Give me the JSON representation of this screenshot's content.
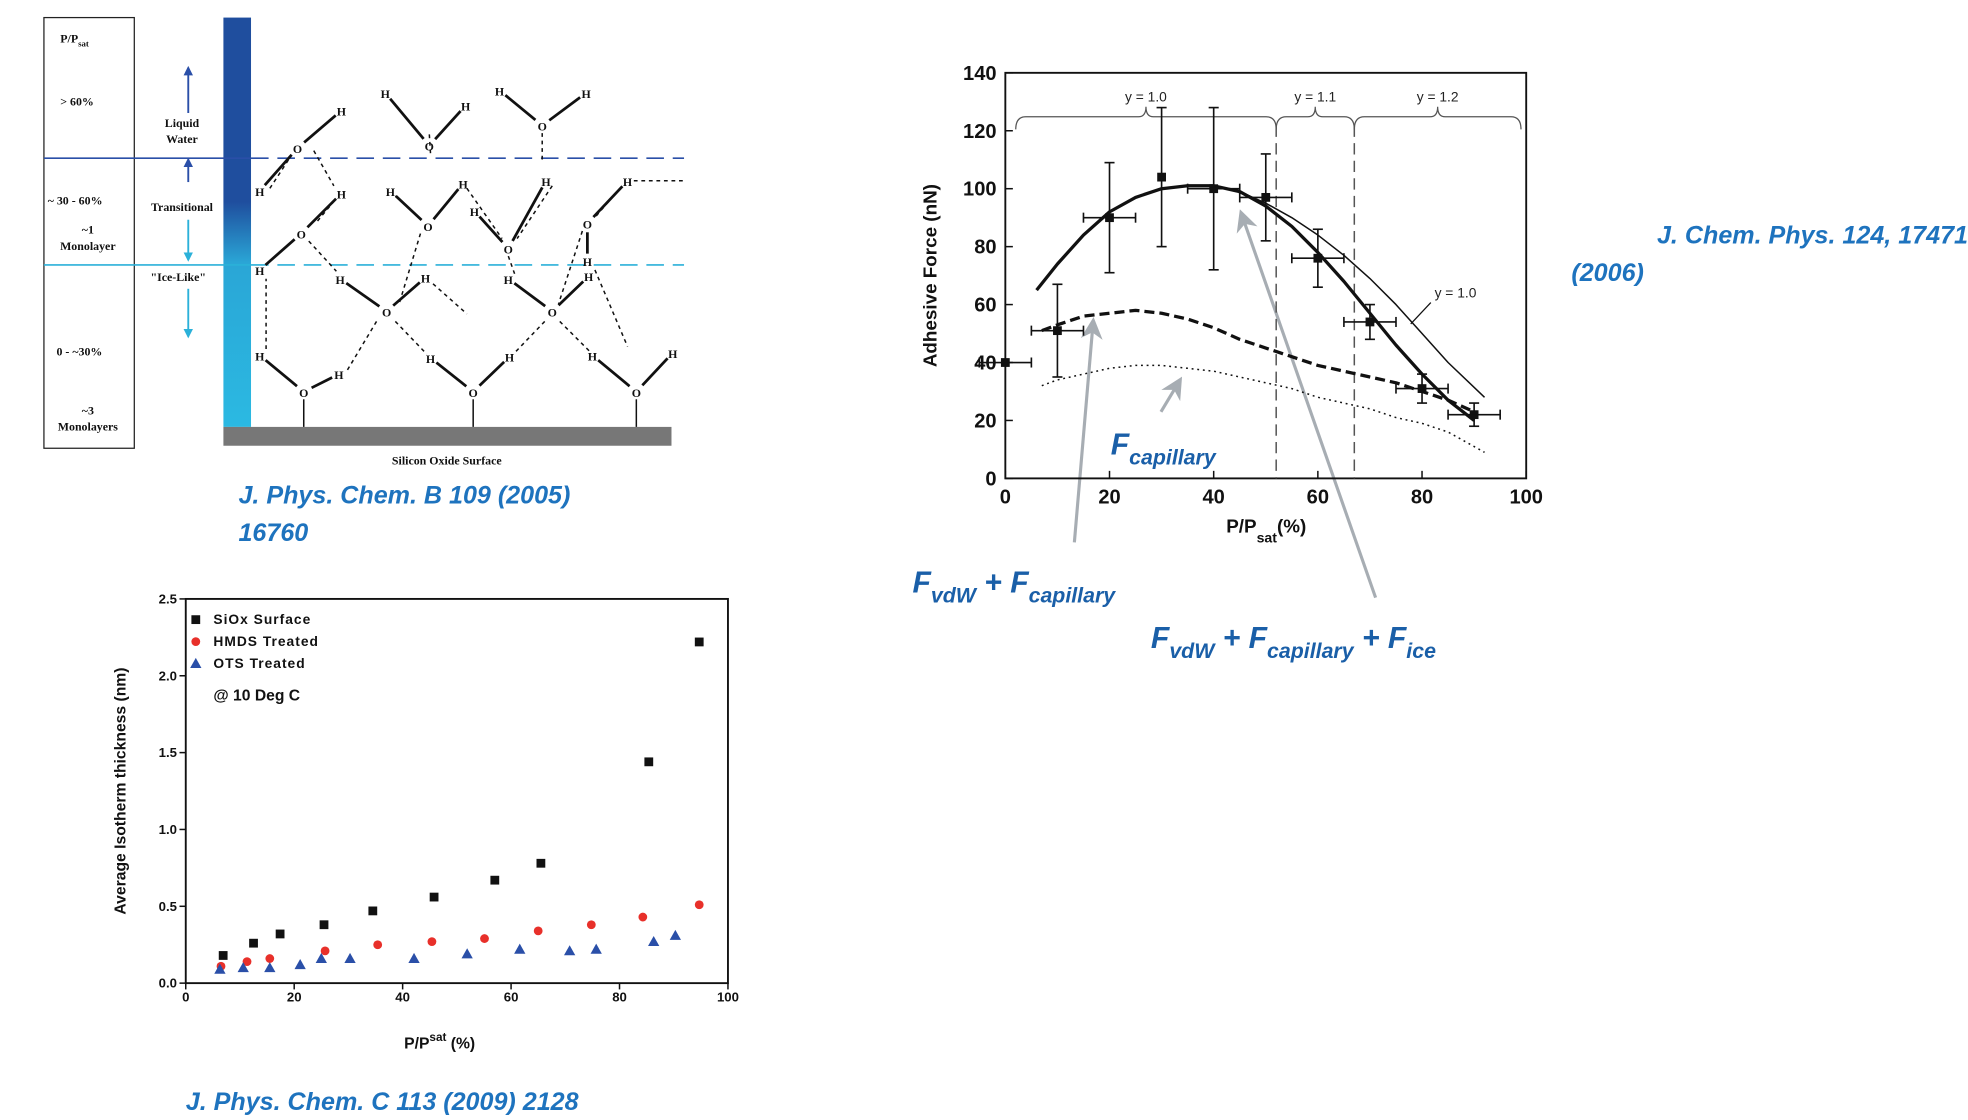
{
  "chart_data": [
    {
      "type": "scatter",
      "y_label": "Average Isotherm thickness (nm)",
      "x_label": [
        "P/P",
        "sat",
        " (%)"
      ],
      "annotation": "@ 10 Deg C",
      "xlim": [
        0,
        100
      ],
      "ylim": [
        0,
        2.5
      ],
      "xticks": [
        0,
        20,
        40,
        60,
        80,
        100
      ],
      "yticks": [
        {
          "value": 0,
          "label": "0.0"
        },
        0.5,
        {
          "value": 1,
          "label": "1.0"
        },
        1.5,
        {
          "value": 2,
          "label": "2.0"
        },
        2.5
      ],
      "legend": "upper left",
      "series": [
        {
          "name": "SiOx Surface",
          "color": "#111111",
          "marker": "square",
          "x": [
            6.9,
            12.5,
            17.4,
            25.5,
            34.5,
            45.8,
            57,
            65.5,
            85.4,
            94.7
          ],
          "values": [
            0.18,
            0.26,
            0.32,
            0.38,
            0.47,
            0.56,
            0.67,
            0.78,
            1.44,
            2.22
          ]
        },
        {
          "name": "HMDS Treated",
          "color": "#e8302a",
          "marker": "circle",
          "x": [
            6.5,
            11.3,
            15.5,
            25.7,
            35.4,
            45.4,
            55.1,
            65,
            74.8,
            84.3,
            94.7
          ],
          "values": [
            0.11,
            0.14,
            0.16,
            0.21,
            0.25,
            0.27,
            0.29,
            0.34,
            0.38,
            0.43,
            0.51
          ]
        },
        {
          "name": "OTS Treated",
          "color": "#2a4fa8",
          "marker": "triangle",
          "x": [
            6.3,
            10.6,
            15.5,
            21.1,
            25,
            30.3,
            42.1,
            51.9,
            61.6,
            70.8,
            75.7,
            86.3,
            90.3
          ],
          "values": [
            0.09,
            0.1,
            0.1,
            0.12,
            0.16,
            0.16,
            0.16,
            0.19,
            0.22,
            0.21,
            0.22,
            0.27,
            0.31
          ]
        }
      ]
    },
    {
      "type": "line",
      "y_label": "Adhesive Force (nN)",
      "x_label": [
        "P/P",
        "sat",
        "(%)"
      ],
      "xlim": [
        0,
        100
      ],
      "ylim": [
        0,
        140
      ],
      "xticks": [
        0,
        20,
        40,
        60,
        80,
        100
      ],
      "yticks": [
        0,
        20,
        40,
        60,
        80,
        100,
        120,
        140
      ],
      "regions": [
        {
          "label": "y = 1.0",
          "from": 2,
          "to": 52
        },
        {
          "label": "y = 1.1",
          "from": 52,
          "to": 67
        },
        {
          "label": "y = 1.2",
          "from": 67,
          "to": 99
        }
      ],
      "curve_label": "y = 1.0",
      "annotations": [
        [
          "F",
          "capillary"
        ],
        [
          "F",
          "vdW",
          " + F",
          "capillary"
        ],
        [
          "F",
          "vdW",
          " + F",
          "capillary",
          " + F",
          "ice"
        ]
      ],
      "series": [
        {
          "color": "#111111",
          "marker": "square",
          "x": [
            0,
            10,
            20,
            30,
            40,
            50,
            60,
            70,
            80,
            90
          ],
          "values": [
            40,
            51,
            90,
            104,
            100,
            97,
            76,
            54,
            31,
            22
          ],
          "yerr": [
            null,
            16,
            19,
            24,
            28,
            15,
            10,
            6,
            5,
            4
          ],
          "xerr": [
            5,
            5,
            5,
            null,
            5,
            5,
            5,
            5,
            5,
            5
          ]
        },
        {
          "color": "#111111",
          "line_style": "solid",
          "line_width": "thick",
          "x": [
            6,
            10,
            15,
            20,
            25,
            30,
            35,
            40,
            45,
            50,
            55,
            60,
            65,
            70,
            75,
            80,
            85,
            90
          ],
          "values": [
            65,
            74,
            84,
            92,
            97,
            100,
            101,
            101,
            99,
            94,
            87,
            78,
            68,
            57,
            46,
            36,
            27,
            20
          ]
        },
        {
          "color": "#111111",
          "line_style": "solid",
          "line_width": "thin",
          "x": [
            40,
            45,
            50,
            55,
            60,
            65,
            70,
            75,
            80,
            85,
            92
          ],
          "values": [
            101,
            99,
            95,
            90,
            84,
            77,
            69,
            60,
            50,
            40,
            28
          ]
        },
        {
          "color": "#111111",
          "line_style": "dashed",
          "line_width": "thick",
          "x": [
            7,
            10,
            15,
            20,
            25,
            30,
            35,
            40,
            45,
            50,
            55,
            60,
            65,
            70,
            75,
            80,
            85,
            90
          ],
          "values": [
            51,
            53,
            56,
            57,
            58,
            57,
            55,
            52,
            48,
            45,
            42,
            39,
            37,
            35,
            33,
            30,
            27,
            23
          ]
        },
        {
          "color": "#111111",
          "line_style": "dotted",
          "line_width": "thin",
          "x": [
            7,
            10,
            15,
            20,
            25,
            30,
            35,
            40,
            45,
            50,
            55,
            60,
            65,
            70,
            75,
            80,
            85,
            92
          ],
          "values": [
            32,
            34,
            36,
            38,
            39,
            39,
            38,
            37,
            35,
            33,
            31,
            28,
            26,
            24,
            21,
            19,
            16,
            9
          ]
        }
      ]
    }
  ],
  "diagram": {
    "pressure": [
      "P/P",
      "sat"
    ],
    "levels": [
      "> 60%",
      "~ 30 - 60%",
      "~1",
      "Monolayer",
      "0 - ~30%",
      "~3",
      "Monolayers"
    ],
    "phases": [
      "Liquid",
      "Water",
      "Transitional",
      "\"Ice-Like\""
    ],
    "surface": "Silicon Oxide Surface",
    "atoms": [
      "O",
      "H",
      "H",
      "O",
      "H",
      "H",
      "O",
      "H",
      "H",
      "O",
      "H",
      "H",
      "O",
      "H",
      "H",
      "O",
      "H",
      "H",
      "O",
      "H",
      "H",
      "O",
      "H",
      "H",
      "O",
      "H",
      "H",
      "O",
      "H",
      "H",
      "O",
      "H",
      "H",
      "O",
      "H",
      "H"
    ]
  },
  "citations": [
    "J. Phys. Chem. B 109 (2005)",
    "16760",
    "J. Phys. Chem. C 113 (2009) 2128",
    "J. Chem. Phys. 124, 17471",
    "(2006)"
  ]
}
